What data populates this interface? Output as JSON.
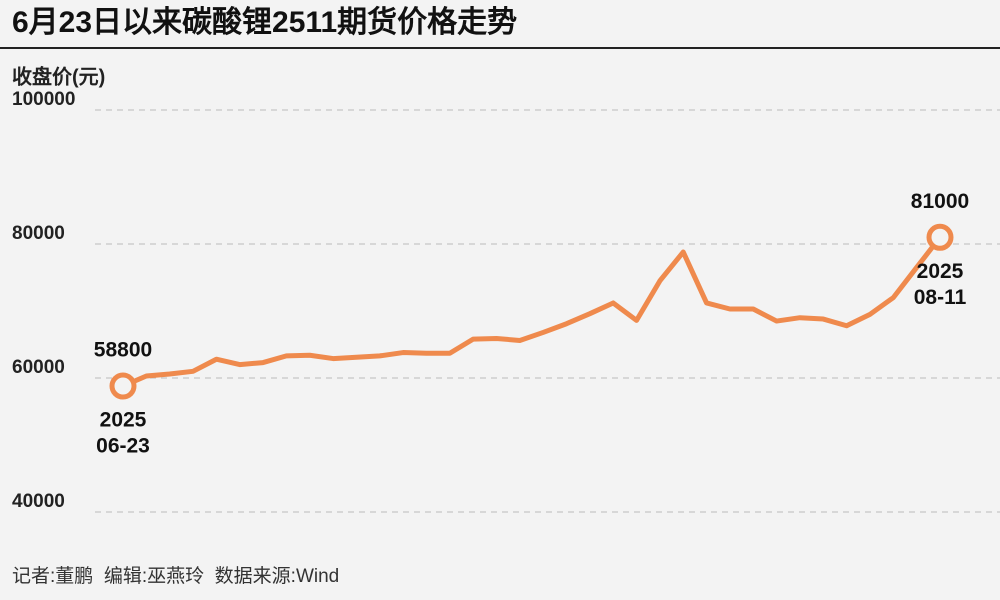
{
  "chart_data": {
    "type": "line",
    "title": "6月23日以来碳酸锂2511期货价格走势",
    "y_label": "收盘价(元)",
    "footer": "记者:董鹏  编辑:巫燕玲  数据来源:Wind",
    "categories": [
      [
        "2025",
        "06-23"
      ],
      null,
      null,
      null,
      null,
      null,
      null,
      null,
      null,
      null,
      null,
      null,
      null,
      null,
      null,
      null,
      null,
      null,
      null,
      null,
      null,
      null,
      null,
      null,
      null,
      null,
      null,
      null,
      null,
      null,
      null,
      null,
      null,
      null,
      null,
      [
        "2025",
        "08-11"
      ]
    ],
    "series": [
      {
        "name": "碳酸锂2511",
        "color": "#ef8a4d",
        "values": [
          58800,
          60300,
          60600,
          61000,
          62800,
          62000,
          62300,
          63300,
          63400,
          62900,
          63100,
          63300,
          63800,
          63700,
          63700,
          65800,
          65900,
          65600,
          66800,
          68100,
          69600,
          71200,
          68600,
          74500,
          78800,
          71200,
          70300,
          70300,
          68500,
          69000,
          68800,
          67800,
          69500,
          72000,
          76500,
          81000
        ]
      }
    ],
    "ylim": [
      40000,
      100000
    ],
    "yticks": [
      40000,
      60000,
      80000,
      100000
    ],
    "grid": true
  }
}
